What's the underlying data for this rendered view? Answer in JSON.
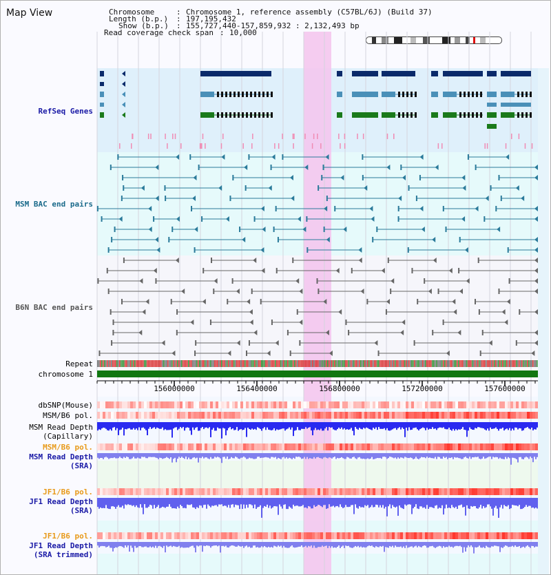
{
  "view": {
    "title": "Map View"
  },
  "info": {
    "chromosome_key": "Chromosome",
    "chromosome_value": "Chromosome 1, reference assembly (C57BL/6J) (Build 37)",
    "length_key": "Length (b.p.)",
    "length_value": "197,195,432",
    "show_key": "Show (b.p.)",
    "show_value": "155,727,440-157,859,932 : 2,132,493 bp",
    "span_key": "Read coverage check span",
    "span_value": "10,000"
  },
  "tracks": {
    "refseq": {
      "label": "RefSeq Genes",
      "color": "#1a1aa6"
    },
    "msm_bac": {
      "label": "MSM BAC end pairs",
      "color": "#1a6a8a"
    },
    "b6n_bac": {
      "label": "B6N BAC end pairs",
      "color": "#555555"
    },
    "repeat": {
      "label": "Repeat",
      "color": "#000000"
    },
    "chromosome": {
      "label": "chromosome 1",
      "color": "#000000"
    },
    "dbsnp": {
      "label": "dbSNP(Mouse)",
      "color": "#333333"
    },
    "msm_b6_pol_1": {
      "label": "MSM/B6 pol.",
      "color": "#333333"
    },
    "msm_depth_cap_1": {
      "label": "MSM Read Depth",
      "color": "#333333"
    },
    "msm_depth_cap_2": {
      "label": "(Capillary)",
      "color": "#333333"
    },
    "msm_b6_pol_2": {
      "label": "MSM/B6 pol.",
      "color": "#e89a1a"
    },
    "msm_depth_sra_1": {
      "label": "MSM Read Depth",
      "color": "#1a1aa6"
    },
    "msm_depth_sra_2": {
      "label": "(SRA)",
      "color": "#1a1aa6"
    },
    "jf1_b6_pol_1": {
      "label": "JF1/B6 pol.",
      "color": "#e89a1a"
    },
    "jf1_depth_sra_1": {
      "label": "JF1 Read Depth",
      "color": "#1a1aa6"
    },
    "jf1_depth_sra_2": {
      "label": "(SRA)",
      "color": "#1a1aa6"
    },
    "jf1_b6_pol_2": {
      "label": "JF1/B6 pol.",
      "color": "#e89a1a"
    },
    "jf1_depth_trim_1": {
      "label": "JF1 Read Depth",
      "color": "#1a1aa6"
    },
    "jf1_depth_trim_2": {
      "label": "(SRA trimmed)",
      "color": "#1a1aa6"
    }
  },
  "axis": {
    "ticks": [
      "156000000",
      "156400000",
      "156800000",
      "157200000",
      "157600000"
    ]
  },
  "colors": {
    "gene_dark": "#0a2a6a",
    "gene_mid": "#4a90b8",
    "gene_green": "#1a7a1a",
    "highlight": "#f4c6ee",
    "depth_blue": "#2a2af0",
    "depth_light": "#8080ee",
    "snp_red": "#e83030"
  }
}
